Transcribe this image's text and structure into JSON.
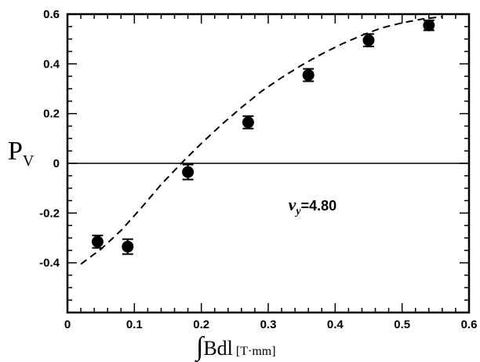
{
  "chart_data": {
    "type": "scatter",
    "title": "",
    "xlabel": {
      "integral": "∫",
      "main": "Bdl",
      "unit": "[T·mm]"
    },
    "ylabel": {
      "main": "P",
      "sub": "V"
    },
    "xlim": [
      0,
      0.6
    ],
    "ylim": [
      -0.6,
      0.6
    ],
    "x_ticks": [
      0,
      0.1,
      0.2,
      0.3,
      0.4,
      0.5,
      0.6
    ],
    "x_tick_labels": [
      "0",
      "0.1",
      "0.2",
      "0.3",
      "0.4",
      "0.5",
      "0.6"
    ],
    "y_ticks": [
      -0.4,
      -0.2,
      0,
      0.2,
      0.4,
      0.6
    ],
    "y_tick_labels": [
      "-0.4",
      "-0.2",
      "0",
      "0.2",
      "0.4",
      "0.6"
    ],
    "grid": false,
    "zero_line": true,
    "points": [
      {
        "x": 0.045,
        "y": -0.315,
        "err": 0.025
      },
      {
        "x": 0.09,
        "y": -0.335,
        "err": 0.03
      },
      {
        "x": 0.18,
        "y": -0.035,
        "err": 0.03
      },
      {
        "x": 0.27,
        "y": 0.165,
        "err": 0.025
      },
      {
        "x": 0.36,
        "y": 0.355,
        "err": 0.025
      },
      {
        "x": 0.45,
        "y": 0.495,
        "err": 0.025
      },
      {
        "x": 0.54,
        "y": 0.555,
        "err": 0.02
      }
    ],
    "fit_curve": {
      "style": "dashed",
      "x": [
        0.02,
        0.05,
        0.08,
        0.11,
        0.14,
        0.17,
        0.2,
        0.23,
        0.26,
        0.29,
        0.32,
        0.35,
        0.38,
        0.41,
        0.44,
        0.47,
        0.5,
        0.53,
        0.56
      ],
      "y": [
        -0.405,
        -0.345,
        -0.27,
        -0.18,
        -0.085,
        0.0,
        0.08,
        0.155,
        0.225,
        0.29,
        0.345,
        0.395,
        0.44,
        0.48,
        0.515,
        0.545,
        0.565,
        0.58,
        0.59
      ]
    },
    "annotation": {
      "symbol": "ν",
      "sub": "y",
      "value": "=4.80",
      "x": 0.33,
      "y": -0.19
    }
  }
}
